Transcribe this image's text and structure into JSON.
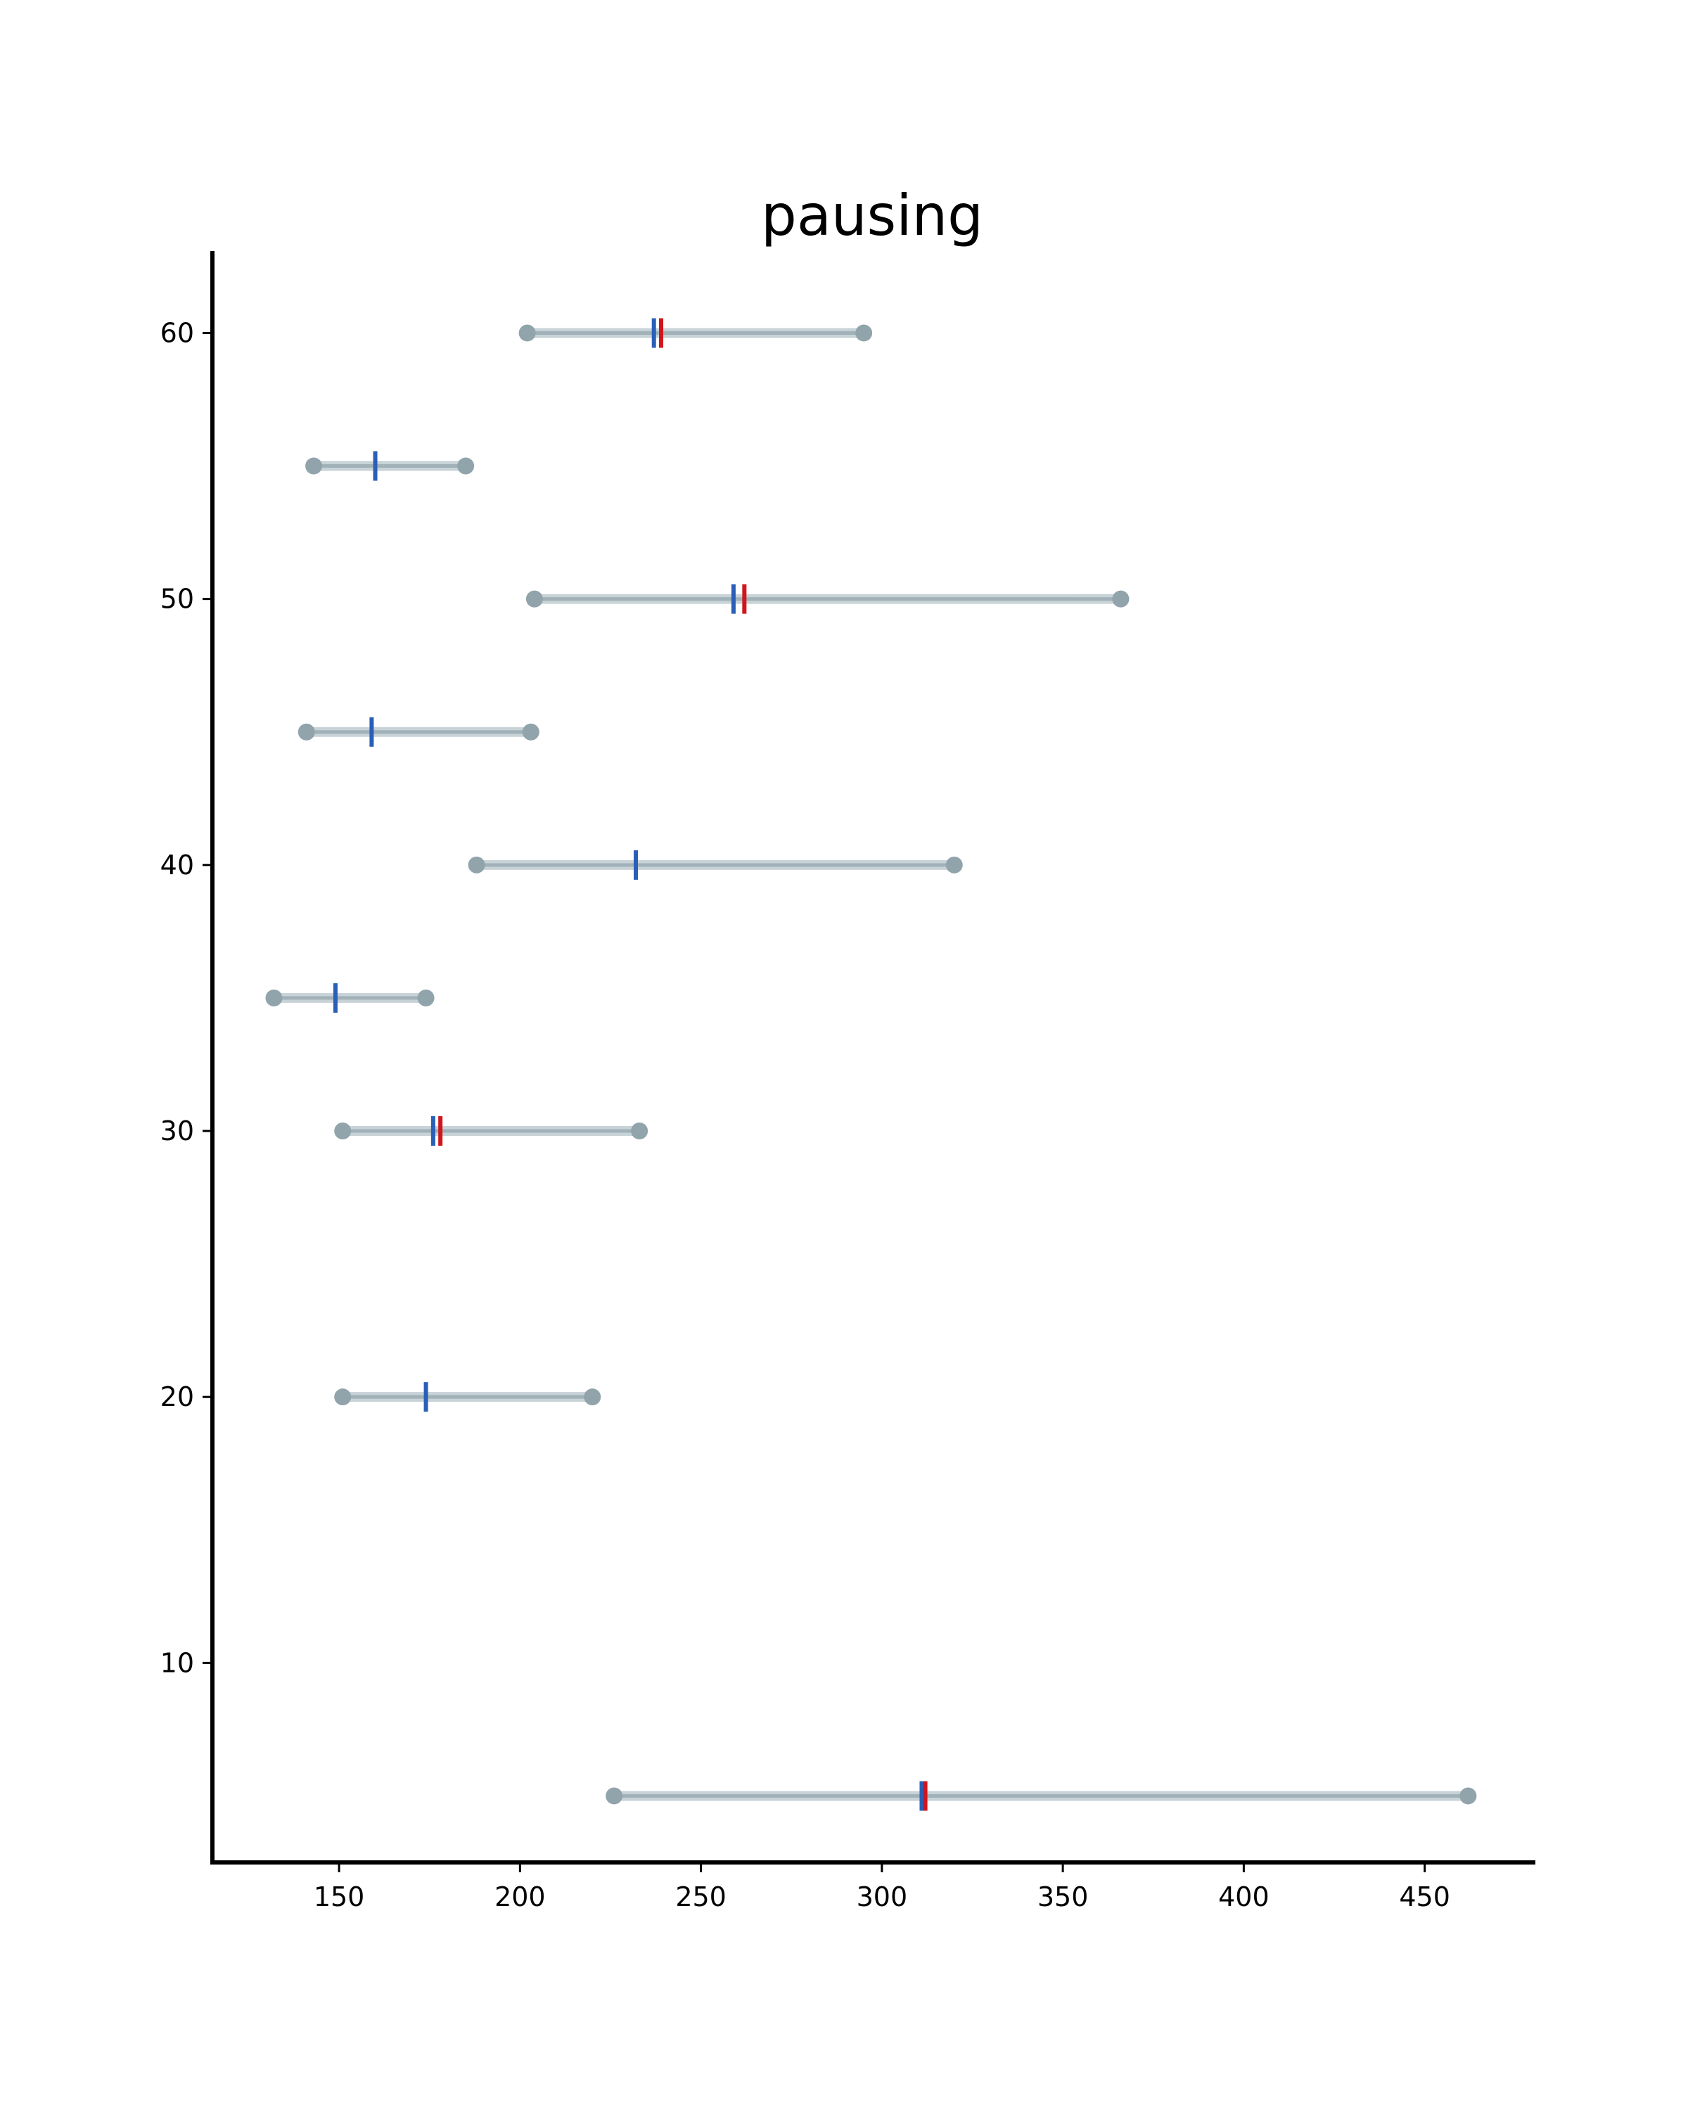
{
  "chart_data": {
    "type": "dumbbell",
    "title": "pausing",
    "xlabel": "",
    "ylabel": "",
    "xlim": [
      115,
      480
    ],
    "ylim": [
      2.5,
      63
    ],
    "grid": false,
    "xticks": [
      150,
      200,
      250,
      300,
      350,
      400,
      450
    ],
    "yticks": [
      10,
      20,
      30,
      40,
      50,
      60
    ],
    "colors": {
      "range_line": "#b6c5cc",
      "endpoint": "#91a3ab",
      "median_marker": "#2a5fb8",
      "mean_marker": "#d0161d",
      "axis": "#000000"
    },
    "rows": [
      {
        "y": 5,
        "start": 226,
        "end": 462,
        "marker_blue": 311,
        "marker_red": 312
      },
      {
        "y": 20,
        "start": 151,
        "end": 220,
        "marker_blue": 174,
        "marker_red": null
      },
      {
        "y": 30,
        "start": 151,
        "end": 233,
        "marker_blue": 176,
        "marker_red": 178
      },
      {
        "y": 35,
        "start": 132,
        "end": 174,
        "marker_blue": 149,
        "marker_red": null
      },
      {
        "y": 40,
        "start": 188,
        "end": 320,
        "marker_blue": 232,
        "marker_red": null
      },
      {
        "y": 45,
        "start": 141,
        "end": 203,
        "marker_blue": 159,
        "marker_red": null
      },
      {
        "y": 50,
        "start": 204,
        "end": 366,
        "marker_blue": 259,
        "marker_red": 262
      },
      {
        "y": 55,
        "start": 143,
        "end": 185,
        "marker_blue": 160,
        "marker_red": null
      },
      {
        "y": 60,
        "start": 202,
        "end": 295,
        "marker_blue": 237,
        "marker_red": 239
      }
    ]
  }
}
